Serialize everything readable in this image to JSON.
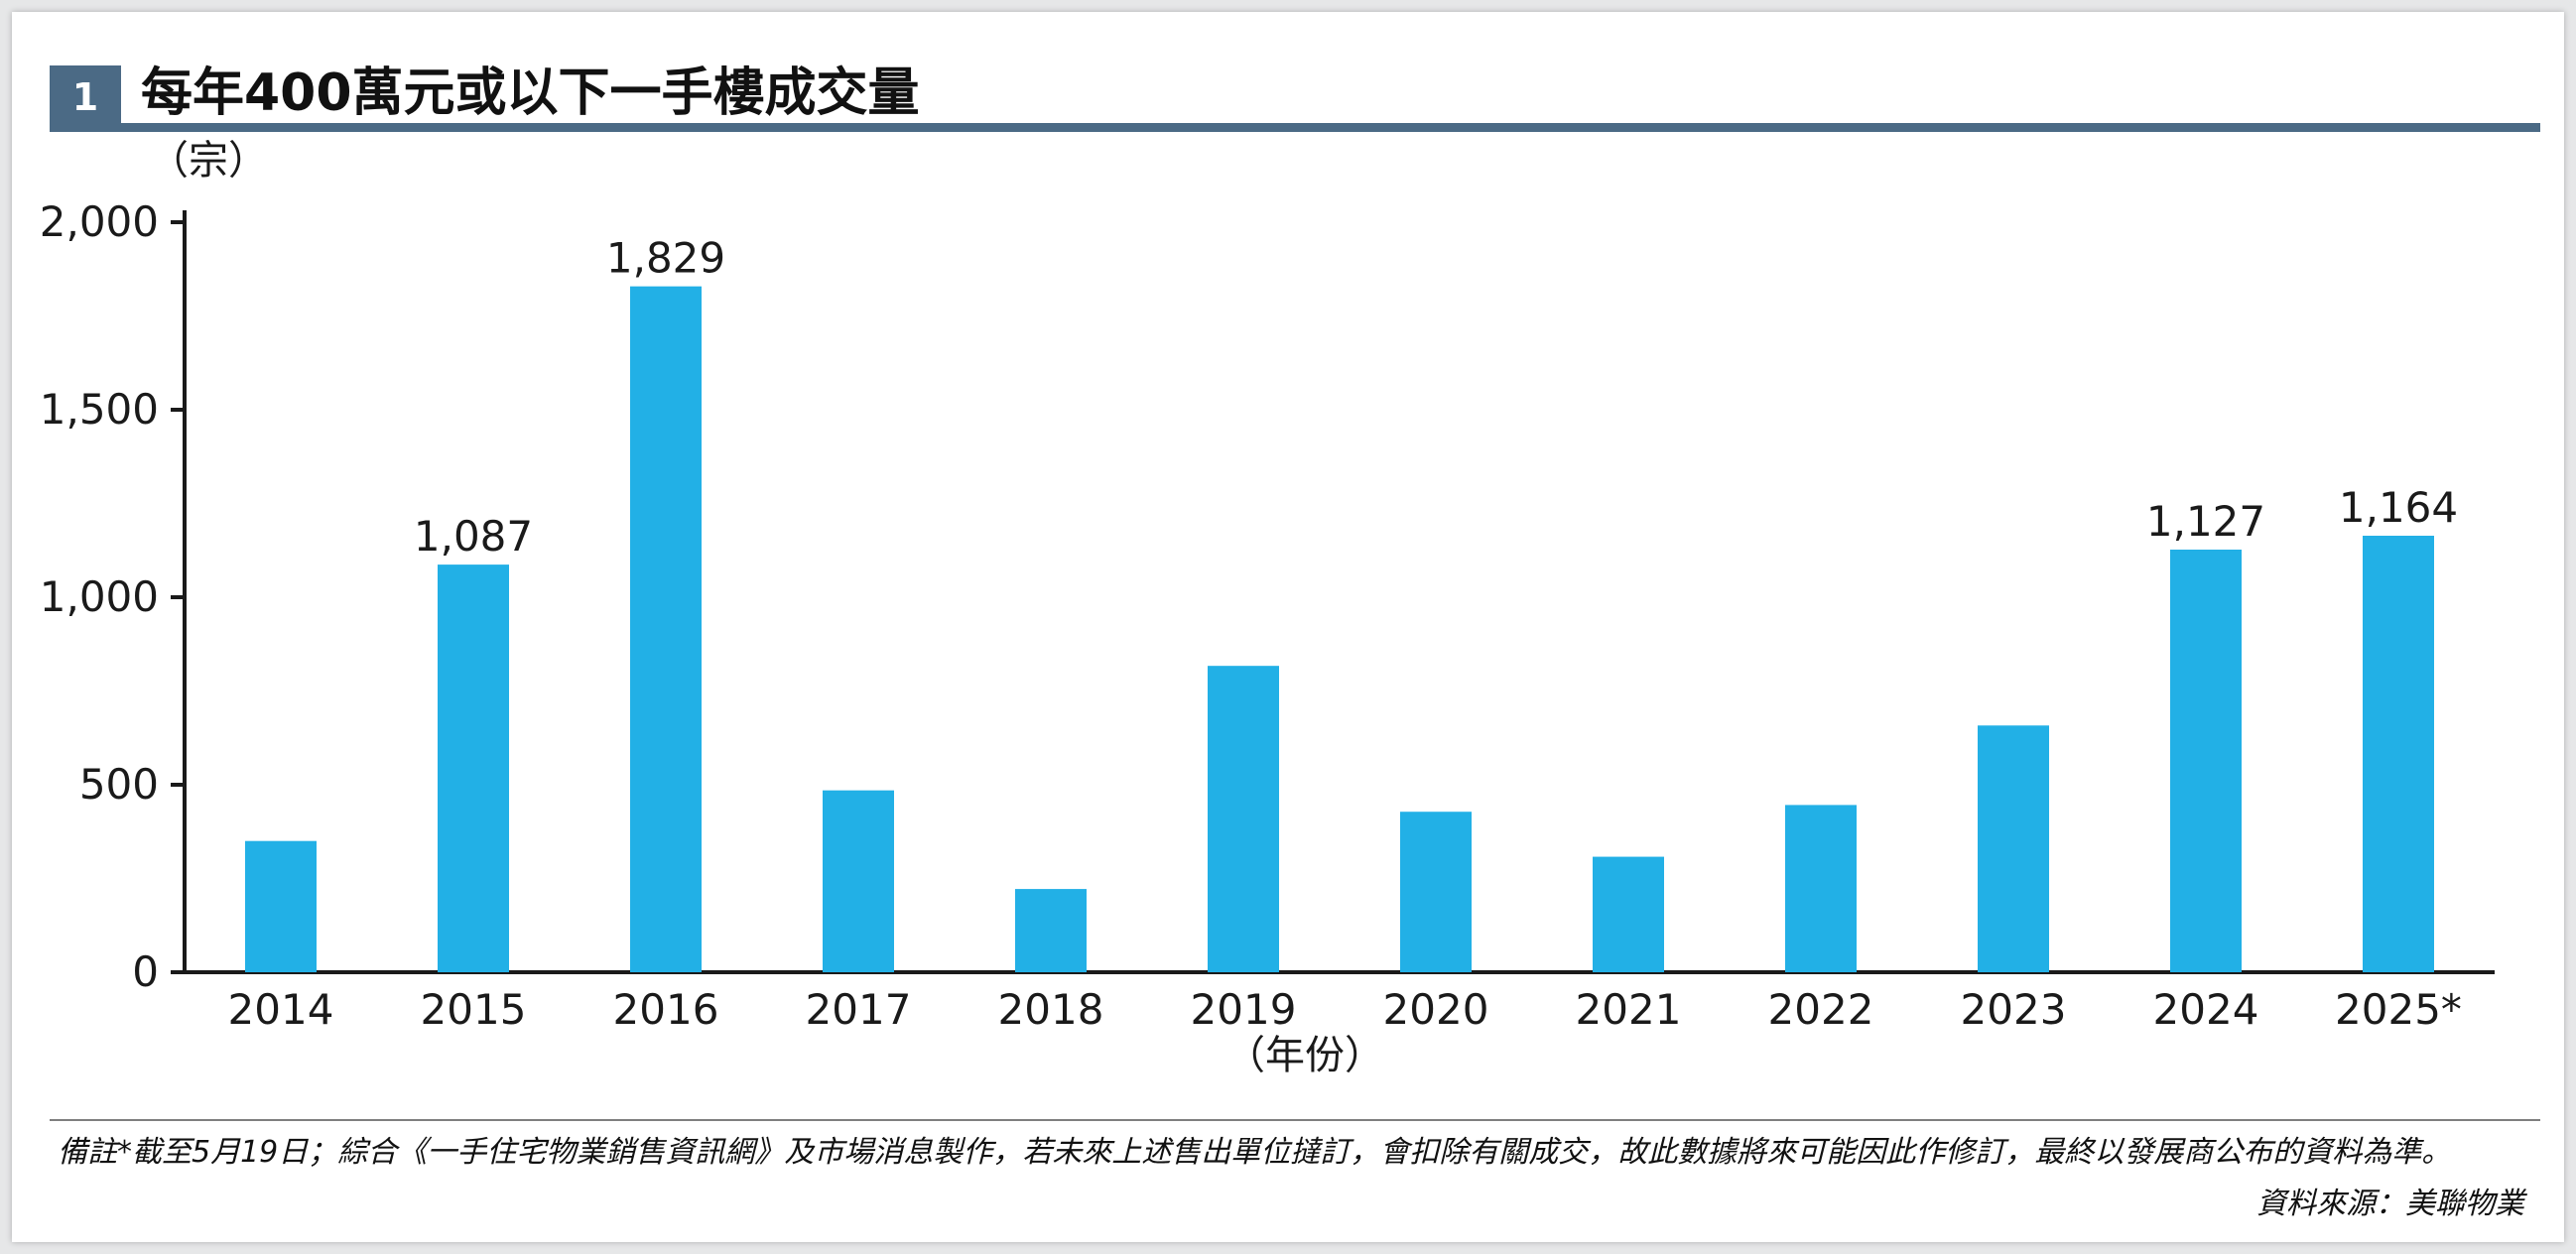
{
  "header": {
    "number": "1",
    "title": "每年400萬元或以下一手樓成交量"
  },
  "chart_data": {
    "type": "bar",
    "title": "每年400萬元或以下一手樓成交量",
    "ylabel": "（宗）",
    "xlabel": "（年份）",
    "categories": [
      "2014",
      "2015",
      "2016",
      "2017",
      "2018",
      "2019",
      "2020",
      "2021",
      "2022",
      "2023",
      "2024",
      "2025*"
    ],
    "values": [
      350,
      1087,
      1829,
      485,
      222,
      817,
      428,
      308,
      446,
      658,
      1127,
      1164
    ],
    "data_labels": [
      "",
      "1,087",
      "1,829",
      "",
      "",
      "",
      "",
      "",
      "",
      "",
      "1,127",
      "1,164"
    ],
    "ylim": [
      0,
      2000
    ],
    "yticks": [
      0,
      500,
      1000,
      1500,
      2000
    ],
    "ytick_labels": [
      "0",
      "500",
      "1,000",
      "1,500",
      "2,000"
    ],
    "grid": false,
    "legend": "none",
    "bar_color": "#22b0e6"
  },
  "footnote": "備註*截至5月19日；綜合《一手住宅物業銷售資訊網》及市場消息製作，若未來上述售出單位撻訂，會扣除有關成交，故此數據將來可能因此作修訂，最終以發展商公布的資料為準。",
  "source": "資料來源：美聯物業"
}
